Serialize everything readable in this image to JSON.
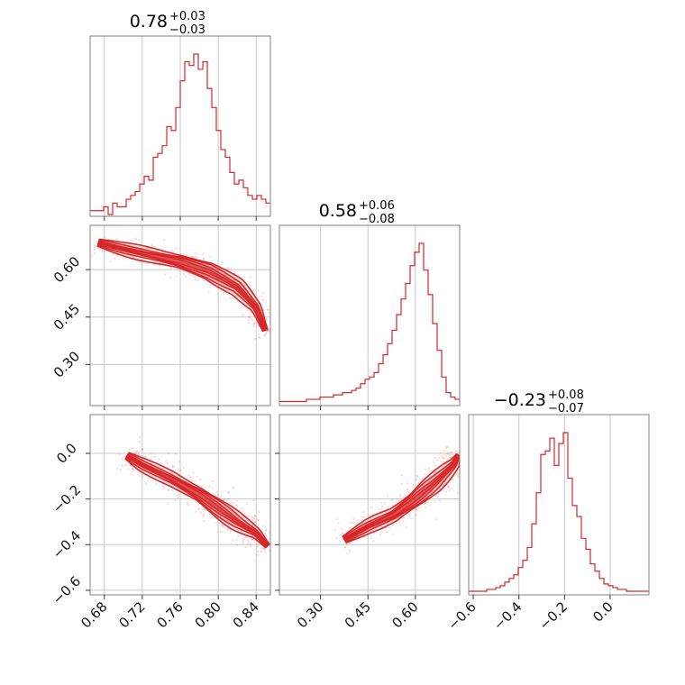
{
  "chart_data": {
    "type": "corner",
    "color": "#d62728",
    "parameters": [
      {
        "index": 0,
        "median": "0.78",
        "plus": "+0.03",
        "minus": "−0.03",
        "range": [
          0.665,
          0.855
        ],
        "ticks": [
          0.68,
          0.72,
          0.76,
          0.8,
          0.84
        ],
        "tick_labels": [
          "0.68",
          "0.72",
          "0.76",
          "0.80",
          "0.84"
        ]
      },
      {
        "index": 1,
        "median": "0.58",
        "plus": "+0.06",
        "minus": "−0.08",
        "range": [
          0.17,
          0.74
        ],
        "ticks": [
          0.3,
          0.45,
          0.6
        ],
        "tick_labels": [
          "0.30",
          "0.45",
          "0.60"
        ]
      },
      {
        "index": 2,
        "median": "−0.23",
        "plus": "+0.08",
        "minus": "−0.07",
        "range": [
          -0.62,
          0.17
        ],
        "ticks": [
          -0.6,
          -0.4,
          -0.2,
          0.0
        ],
        "tick_labels": [
          "−0.6",
          "−0.4",
          "−0.2",
          "0.0"
        ]
      }
    ],
    "histograms": [
      {
        "param": 0,
        "bin_start": 0.665,
        "bin_width": 0.00475,
        "counts": [
          1,
          1,
          1,
          2,
          0,
          3,
          2,
          2,
          4,
          5,
          6,
          8,
          10,
          9,
          15,
          16,
          18,
          23,
          22,
          28,
          35,
          40,
          39,
          42,
          38,
          40,
          33,
          28,
          22,
          17,
          15,
          11,
          8,
          9,
          7,
          5,
          4,
          5,
          4,
          3
        ]
      },
      {
        "param": 1,
        "bin_start": 0.17,
        "bin_width": 0.01425,
        "counts": [
          1,
          1,
          1,
          1,
          1,
          1,
          2,
          2,
          2,
          3,
          3,
          3,
          4,
          4,
          5,
          5,
          6,
          7,
          9,
          11,
          12,
          14,
          18,
          22,
          27,
          33,
          40,
          47,
          54,
          62,
          68,
          72,
          60,
          49,
          36,
          24,
          12,
          5,
          3,
          2
        ]
      },
      {
        "param": 2,
        "bin_start": -0.62,
        "bin_width": 0.01975,
        "counts": [
          1,
          1,
          1,
          1,
          2,
          2,
          3,
          4,
          6,
          8,
          10,
          14,
          18,
          25,
          38,
          55,
          76,
          78,
          85,
          70,
          82,
          88,
          63,
          48,
          42,
          30,
          24,
          16,
          12,
          8,
          5,
          4,
          3,
          2,
          2,
          1,
          1,
          1,
          1,
          1
        ]
      }
    ],
    "correlations": [
      {
        "x_param": 0,
        "y_param": 1,
        "ridge": [
          [
            0.667,
            0.69
          ],
          [
            0.7,
            0.665
          ],
          [
            0.73,
            0.645
          ],
          [
            0.76,
            0.625
          ],
          [
            0.79,
            0.595
          ],
          [
            0.82,
            0.545
          ],
          [
            0.84,
            0.48
          ],
          [
            0.852,
            0.39
          ]
        ],
        "spread": 0.012
      },
      {
        "x_param": 0,
        "y_param": 2,
        "ridge": [
          [
            0.7,
            0.0
          ],
          [
            0.72,
            -0.05
          ],
          [
            0.75,
            -0.11
          ],
          [
            0.78,
            -0.18
          ],
          [
            0.8,
            -0.24
          ],
          [
            0.82,
            -0.3
          ],
          [
            0.84,
            -0.35
          ],
          [
            0.855,
            -0.42
          ]
        ],
        "spread": 0.025
      },
      {
        "x_param": 1,
        "y_param": 2,
        "ridge": [
          [
            0.36,
            -0.39
          ],
          [
            0.45,
            -0.32
          ],
          [
            0.53,
            -0.27
          ],
          [
            0.6,
            -0.2
          ],
          [
            0.66,
            -0.13
          ],
          [
            0.72,
            -0.05
          ],
          [
            0.74,
            0.0
          ]
        ],
        "spread": 0.022
      }
    ]
  }
}
